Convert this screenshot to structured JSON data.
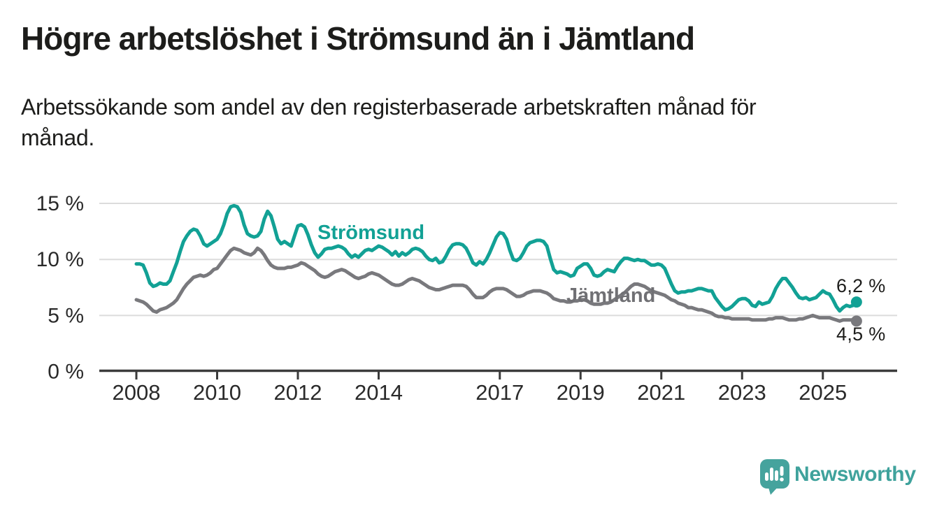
{
  "header": {
    "title": "Högre arbetslöshet i Strömsund än i Jämtland",
    "subtitle": "Arbetssökande som andel av den registerbaserade arbetskraften månad för månad."
  },
  "chart_data": {
    "type": "line",
    "unit": "%",
    "frequency": "monthly",
    "x_start": "2008-01",
    "x_end": "2025-11",
    "grid": "horizontal",
    "legend_position": "inline-labels",
    "x_tick_years": [
      2008,
      2010,
      2012,
      2014,
      2017,
      2019,
      2021,
      2023,
      2025
    ],
    "x_tick_labels": [
      "2008",
      "2010",
      "2012",
      "2014",
      "2017",
      "2019",
      "2021",
      "2023",
      "2025"
    ],
    "y_ticks": [
      0,
      5,
      10,
      15
    ],
    "y_tick_labels": [
      "0 %",
      "5 %",
      "10 %",
      "15 %"
    ],
    "ylim": [
      0,
      15.5
    ],
    "series": [
      {
        "name": "Strömsund",
        "color": "#12A195",
        "end_label": "6,2 %",
        "end_value": 6.2,
        "values": [
          9.6,
          9.6,
          9.5,
          8.8,
          7.9,
          7.6,
          7.7,
          7.9,
          7.8,
          7.8,
          8.1,
          8.9,
          9.7,
          10.7,
          11.6,
          12.1,
          12.5,
          12.7,
          12.6,
          12.1,
          11.4,
          11.2,
          11.4,
          11.6,
          11.8,
          12.3,
          13.1,
          14.1,
          14.7,
          14.8,
          14.7,
          14.2,
          13.1,
          12.3,
          12.1,
          12.0,
          12.1,
          12.5,
          13.6,
          14.3,
          13.9,
          12.9,
          11.8,
          11.4,
          11.6,
          11.4,
          11.2,
          12.1,
          13.0,
          13.1,
          12.9,
          12.2,
          11.3,
          10.6,
          10.2,
          10.5,
          10.9,
          11.0,
          11.0,
          11.1,
          11.2,
          11.1,
          10.9,
          10.5,
          10.2,
          10.4,
          10.2,
          10.5,
          10.8,
          10.9,
          10.8,
          11.0,
          11.2,
          11.1,
          10.9,
          10.7,
          10.4,
          10.7,
          10.3,
          10.6,
          10.4,
          10.6,
          10.9,
          11.0,
          10.9,
          10.7,
          10.3,
          10.0,
          9.9,
          10.1,
          9.7,
          9.8,
          10.3,
          10.9,
          11.3,
          11.4,
          11.4,
          11.3,
          11.0,
          10.4,
          9.7,
          9.5,
          9.8,
          9.6,
          10.0,
          10.6,
          11.3,
          12.0,
          12.4,
          12.3,
          11.8,
          10.8,
          10.0,
          9.9,
          10.1,
          10.6,
          11.2,
          11.5,
          11.6,
          11.7,
          11.7,
          11.6,
          11.2,
          10.1,
          9.1,
          8.8,
          8.9,
          8.8,
          8.7,
          8.5,
          8.6,
          9.2,
          9.4,
          9.6,
          9.6,
          9.2,
          8.6,
          8.5,
          8.6,
          8.9,
          9.1,
          9.0,
          8.9,
          9.4,
          9.8,
          10.1,
          10.1,
          10.0,
          9.9,
          10.0,
          9.9,
          9.9,
          9.7,
          9.5,
          9.5,
          9.6,
          9.5,
          9.2,
          8.5,
          7.8,
          7.2,
          7.0,
          7.1,
          7.1,
          7.2,
          7.2,
          7.3,
          7.4,
          7.4,
          7.3,
          7.2,
          7.2,
          6.6,
          6.2,
          5.8,
          5.5,
          5.6,
          5.8,
          6.1,
          6.4,
          6.5,
          6.5,
          6.3,
          5.9,
          5.8,
          6.2,
          6.0,
          6.1,
          6.2,
          6.7,
          7.4,
          7.9,
          8.3,
          8.3,
          7.9,
          7.5,
          7.0,
          6.6,
          6.5,
          6.6,
          6.4,
          6.5,
          6.6,
          6.9,
          7.2,
          7.0,
          6.9,
          6.4,
          5.8,
          5.4,
          5.7,
          5.9,
          5.8,
          5.9,
          6.2
        ]
      },
      {
        "name": "Jämtland",
        "color": "#79797D",
        "end_label": "4,5 %",
        "end_value": 4.5,
        "values": [
          6.4,
          6.3,
          6.2,
          6.0,
          5.7,
          5.4,
          5.3,
          5.5,
          5.6,
          5.7,
          5.9,
          6.1,
          6.4,
          6.9,
          7.4,
          7.8,
          8.1,
          8.4,
          8.5,
          8.6,
          8.5,
          8.6,
          8.8,
          9.1,
          9.2,
          9.6,
          10.0,
          10.4,
          10.8,
          11.0,
          10.9,
          10.8,
          10.6,
          10.5,
          10.4,
          10.6,
          11.0,
          10.8,
          10.4,
          9.9,
          9.5,
          9.3,
          9.2,
          9.2,
          9.2,
          9.3,
          9.3,
          9.4,
          9.5,
          9.7,
          9.6,
          9.4,
          9.2,
          9.0,
          8.7,
          8.5,
          8.4,
          8.5,
          8.7,
          8.9,
          9.0,
          9.1,
          9.0,
          8.8,
          8.6,
          8.4,
          8.3,
          8.4,
          8.5,
          8.7,
          8.8,
          8.7,
          8.6,
          8.4,
          8.2,
          8.0,
          7.8,
          7.7,
          7.7,
          7.8,
          8.0,
          8.2,
          8.3,
          8.2,
          8.1,
          7.9,
          7.7,
          7.5,
          7.4,
          7.3,
          7.3,
          7.4,
          7.5,
          7.6,
          7.7,
          7.7,
          7.7,
          7.7,
          7.6,
          7.3,
          6.9,
          6.6,
          6.6,
          6.6,
          6.8,
          7.1,
          7.3,
          7.4,
          7.4,
          7.4,
          7.3,
          7.1,
          6.9,
          6.7,
          6.7,
          6.8,
          7.0,
          7.1,
          7.2,
          7.2,
          7.2,
          7.1,
          7.0,
          6.8,
          6.5,
          6.4,
          6.3,
          6.3,
          6.2,
          6.2,
          6.3,
          6.3,
          6.4,
          6.4,
          6.3,
          6.1,
          6.0,
          6.0,
          6.0,
          6.1,
          6.1,
          6.2,
          6.4,
          6.6,
          6.8,
          7.0,
          7.3,
          7.6,
          7.8,
          7.8,
          7.7,
          7.6,
          7.4,
          7.2,
          7.1,
          7.0,
          6.9,
          6.8,
          6.6,
          6.4,
          6.3,
          6.1,
          6.0,
          5.9,
          5.7,
          5.7,
          5.6,
          5.5,
          5.5,
          5.4,
          5.3,
          5.2,
          5.0,
          4.9,
          4.9,
          4.8,
          4.8,
          4.7,
          4.7,
          4.7,
          4.7,
          4.7,
          4.7,
          4.6,
          4.6,
          4.6,
          4.6,
          4.6,
          4.7,
          4.7,
          4.8,
          4.8,
          4.8,
          4.7,
          4.6,
          4.6,
          4.6,
          4.7,
          4.7,
          4.8,
          4.9,
          5.0,
          4.9,
          4.8,
          4.8,
          4.8,
          4.8,
          4.7,
          4.6,
          4.5,
          4.6,
          4.6,
          4.6,
          4.6,
          4.5
        ]
      }
    ]
  },
  "colors": {
    "stromsund": "#12A195",
    "jamtland": "#79797D",
    "jamtland_label": "#707074",
    "gridline": "#dcdcdc",
    "axis": "#3b3b3b",
    "tick_label": "#2a2a2a",
    "text": "#1d1d1b",
    "logo": "#45a39d"
  },
  "footer": {
    "brand": "Newsworthy"
  }
}
